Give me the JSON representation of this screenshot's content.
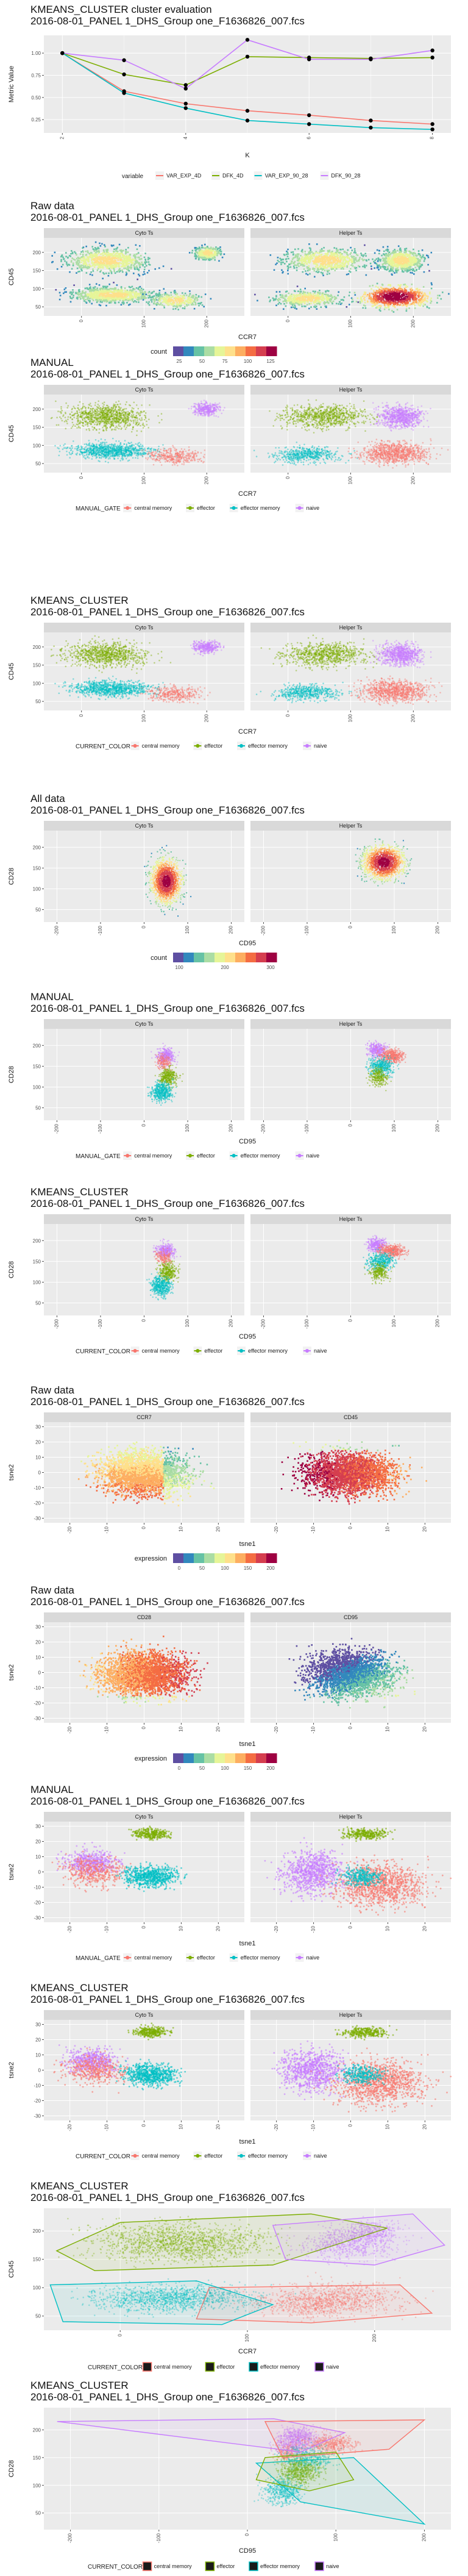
{
  "sample": "2016-08-01_PANEL 1_DHS_Group one_F1636826_007.fcs",
  "chart_data": [
    {
      "id": "eval",
      "type": "line",
      "title": "KMEANS_CLUSTER cluster evaluation",
      "subtitle": "2016-08-01_PANEL 1_DHS_Group one_F1636826_007.fcs",
      "xlabel": "K",
      "ylabel": "Metric Value",
      "x": [
        2,
        3,
        4,
        5,
        6,
        7,
        8
      ],
      "xticks": [
        "2",
        "4",
        "6",
        "8"
      ],
      "yticks": [
        "0.25",
        "0.50",
        "0.75",
        "1.00"
      ],
      "ylim": [
        0.1,
        1.2
      ],
      "legend_title": "variable",
      "series": [
        {
          "name": "VAR_EXP_4D",
          "color": "#F8766D",
          "values": [
            1.0,
            0.57,
            0.43,
            0.35,
            0.3,
            0.24,
            0.2
          ]
        },
        {
          "name": "DFK_4D",
          "color": "#7CAE00",
          "values": [
            1.0,
            0.76,
            0.64,
            0.96,
            0.95,
            0.94,
            0.95
          ]
        },
        {
          "name": "VAR_EXP_90_28",
          "color": "#00BFC4",
          "values": [
            1.0,
            0.55,
            0.38,
            0.24,
            0.2,
            0.16,
            0.14
          ]
        },
        {
          "name": "DFK_90_28",
          "color": "#C77CFF",
          "values": [
            1.0,
            0.92,
            0.6,
            1.15,
            0.93,
            0.93,
            1.03
          ]
        }
      ]
    },
    {
      "id": "raw-ccr7-cd45",
      "type": "heatmap",
      "title": "Raw data",
      "subtitle": "2016-08-01_PANEL 1_DHS_Group one_F1636826_007.fcs",
      "panels": [
        "Cyto Ts",
        "Helper Ts"
      ],
      "xlabel": "CCR7",
      "ylabel": "CD45",
      "xticks": [
        "0",
        "100",
        "200"
      ],
      "yticks": [
        "50",
        "100",
        "150",
        "200"
      ],
      "xlim": [
        -60,
        260
      ],
      "ylim": [
        25,
        240
      ],
      "legend_title": "count",
      "legend_ticks": [
        "25",
        "50",
        "75",
        "100",
        "125"
      ],
      "scale": [
        "#5E4FA2",
        "#3288BD",
        "#66C2A5",
        "#ABDDA4",
        "#E6F598",
        "#FEE08B",
        "#FDAE61",
        "#F46D43",
        "#D53E4F",
        "#9E0142"
      ]
    },
    {
      "id": "manual-ccr7-cd45",
      "type": "scatter",
      "title": "MANUAL",
      "subtitle": "2016-08-01_PANEL 1_DHS_Group one_F1636826_007.fcs",
      "panels": [
        "Cyto Ts",
        "Helper Ts"
      ],
      "xlabel": "CCR7",
      "ylabel": "CD45",
      "xticks": [
        "0",
        "100",
        "200"
      ],
      "yticks": [
        "50",
        "100",
        "150",
        "200"
      ],
      "xlim": [
        -60,
        260
      ],
      "ylim": [
        25,
        240
      ],
      "legend_title": "MANUAL_GATE",
      "categories": [
        "central memory",
        "effector",
        "effector memory",
        "naive"
      ]
    },
    {
      "id": "kmeans-ccr7-cd45",
      "type": "scatter",
      "title": "KMEANS_CLUSTER",
      "subtitle": "2016-08-01_PANEL 1_DHS_Group one_F1636826_007.fcs",
      "panels": [
        "Cyto Ts",
        "Helper Ts"
      ],
      "xlabel": "CCR7",
      "ylabel": "CD45",
      "xticks": [
        "0",
        "100",
        "200"
      ],
      "yticks": [
        "50",
        "100",
        "150",
        "200"
      ],
      "xlim": [
        -60,
        260
      ],
      "ylim": [
        25,
        240
      ],
      "legend_title": "CURRENT_COLOR",
      "categories": [
        "central memory",
        "effector",
        "effector memory",
        "naive"
      ]
    },
    {
      "id": "all-cd95-cd28",
      "type": "heatmap",
      "title": "All data",
      "subtitle": "2016-08-01_PANEL 1_DHS_Group one_F1636826_007.fcs",
      "panels": [
        "Cyto Ts",
        "Helper Ts"
      ],
      "xlabel": "CD95",
      "ylabel": "CD28",
      "xticks": [
        "-200",
        "-100",
        "0",
        "100",
        "200"
      ],
      "yticks": [
        "50",
        "100",
        "150",
        "200"
      ],
      "xlim": [
        -230,
        230
      ],
      "ylim": [
        20,
        240
      ],
      "legend_title": "count",
      "legend_ticks": [
        "100",
        "200",
        "300"
      ],
      "scale": [
        "#5E4FA2",
        "#3288BD",
        "#66C2A5",
        "#ABDDA4",
        "#E6F598",
        "#FEE08B",
        "#FDAE61",
        "#F46D43",
        "#D53E4F",
        "#9E0142"
      ]
    },
    {
      "id": "manual-cd95-cd28",
      "type": "scatter",
      "title": "MANUAL",
      "subtitle": "2016-08-01_PANEL 1_DHS_Group one_F1636826_007.fcs",
      "panels": [
        "Cyto Ts",
        "Helper Ts"
      ],
      "xlabel": "CD95",
      "ylabel": "CD28",
      "xticks": [
        "-200",
        "-100",
        "0",
        "100",
        "200"
      ],
      "yticks": [
        "50",
        "100",
        "150",
        "200"
      ],
      "xlim": [
        -230,
        230
      ],
      "ylim": [
        20,
        240
      ],
      "legend_title": "MANUAL_GATE",
      "categories": [
        "central memory",
        "effector",
        "effector memory",
        "naive"
      ]
    },
    {
      "id": "kmeans-cd95-cd28",
      "type": "scatter",
      "title": "KMEANS_CLUSTER",
      "subtitle": "2016-08-01_PANEL 1_DHS_Group one_F1636826_007.fcs",
      "panels": [
        "Cyto Ts",
        "Helper Ts"
      ],
      "xlabel": "CD95",
      "ylabel": "CD28",
      "xticks": [
        "-200",
        "-100",
        "0",
        "100",
        "200"
      ],
      "yticks": [
        "50",
        "100",
        "150",
        "200"
      ],
      "xlim": [
        -230,
        230
      ],
      "ylim": [
        20,
        240
      ],
      "legend_title": "CURRENT_COLOR",
      "categories": [
        "central memory",
        "effector",
        "effector memory",
        "naive"
      ]
    },
    {
      "id": "tsne-ccr7-cd45",
      "type": "heatmap",
      "title": "Raw data",
      "subtitle": "2016-08-01_PANEL 1_DHS_Group one_F1636826_007.fcs",
      "panels": [
        "CCR7",
        "CD45"
      ],
      "xlabel": "tsne1",
      "ylabel": "tsne2",
      "xticks": [
        "-20",
        "-10",
        "0",
        "10",
        "20"
      ],
      "yticks": [
        "-30",
        "-20",
        "-10",
        "0",
        "10",
        "20",
        "30"
      ],
      "xlim": [
        -27,
        27
      ],
      "ylim": [
        -33,
        33
      ],
      "legend_title": "expression",
      "legend_ticks": [
        "0",
        "50",
        "100",
        "150",
        "200"
      ],
      "scale": [
        "#5E4FA2",
        "#3288BD",
        "#66C2A5",
        "#ABDDA4",
        "#E6F598",
        "#FEE08B",
        "#FDAE61",
        "#F46D43",
        "#D53E4F",
        "#9E0142"
      ]
    },
    {
      "id": "tsne-cd28-cd95",
      "type": "heatmap",
      "title": "Raw data",
      "subtitle": "2016-08-01_PANEL 1_DHS_Group one_F1636826_007.fcs",
      "panels": [
        "CD28",
        "CD95"
      ],
      "xlabel": "tsne1",
      "ylabel": "tsne2",
      "xticks": [
        "-20",
        "-10",
        "0",
        "10",
        "20"
      ],
      "yticks": [
        "-30",
        "-20",
        "-10",
        "0",
        "10",
        "20",
        "30"
      ],
      "xlim": [
        -27,
        27
      ],
      "ylim": [
        -33,
        33
      ],
      "legend_title": "expression",
      "legend_ticks": [
        "0",
        "50",
        "100",
        "150",
        "200"
      ],
      "scale": [
        "#5E4FA2",
        "#3288BD",
        "#66C2A5",
        "#ABDDA4",
        "#E6F598",
        "#FEE08B",
        "#FDAE61",
        "#F46D43",
        "#D53E4F",
        "#9E0142"
      ]
    },
    {
      "id": "tsne-manual",
      "type": "scatter",
      "title": "MANUAL",
      "subtitle": "2016-08-01_PANEL 1_DHS_Group one_F1636826_007.fcs",
      "panels": [
        "Cyto Ts",
        "Helper Ts"
      ],
      "xlabel": "tsne1",
      "ylabel": "tsne2",
      "xticks": [
        "-20",
        "-10",
        "0",
        "10",
        "20"
      ],
      "yticks": [
        "-30",
        "-20",
        "-10",
        "0",
        "10",
        "20",
        "30"
      ],
      "xlim": [
        -27,
        27
      ],
      "ylim": [
        -33,
        33
      ],
      "legend_title": "MANUAL_GATE",
      "categories": [
        "central memory",
        "effector",
        "effector memory",
        "naive"
      ]
    },
    {
      "id": "tsne-kmeans",
      "type": "scatter",
      "title": "KMEANS_CLUSTER",
      "subtitle": "2016-08-01_PANEL 1_DHS_Group one_F1636826_007.fcs",
      "panels": [
        "Cyto Ts",
        "Helper Ts"
      ],
      "xlabel": "tsne1",
      "ylabel": "tsne2",
      "xticks": [
        "-20",
        "-10",
        "0",
        "10",
        "20"
      ],
      "yticks": [
        "-30",
        "-20",
        "-10",
        "0",
        "10",
        "20",
        "30"
      ],
      "xlim": [
        -27,
        27
      ],
      "ylim": [
        -33,
        33
      ],
      "legend_title": "CURRENT_COLOR",
      "categories": [
        "central memory",
        "effector",
        "effector memory",
        "naive"
      ]
    },
    {
      "id": "hull-ccr7-cd45",
      "type": "scatter",
      "title": "KMEANS_CLUSTER",
      "subtitle": "2016-08-01_PANEL 1_DHS_Group one_F1636826_007.fcs",
      "panels": [],
      "xlabel": "CCR7",
      "ylabel": "CD45",
      "xticks": [
        "0",
        "100",
        "200"
      ],
      "yticks": [
        "50",
        "100",
        "150",
        "200"
      ],
      "xlim": [
        -60,
        260
      ],
      "ylim": [
        25,
        240
      ],
      "legend_title": "CURRENT_COLOR",
      "categories": [
        "central memory",
        "effector",
        "effector memory",
        "naive"
      ]
    },
    {
      "id": "hull-cd95-cd28",
      "type": "scatter",
      "title": "KMEANS_CLUSTER",
      "subtitle": "2016-08-01_PANEL 1_DHS_Group one_F1636826_007.fcs",
      "panels": [],
      "xlabel": "CD95",
      "ylabel": "CD28",
      "xticks": [
        "-200",
        "-100",
        "0",
        "100",
        "200"
      ],
      "yticks": [
        "50",
        "100",
        "150",
        "200"
      ],
      "xlim": [
        -230,
        230
      ],
      "ylim": [
        20,
        240
      ],
      "legend_title": "CURRENT_COLOR",
      "categories": [
        "central memory",
        "effector",
        "effector memory",
        "naive"
      ]
    }
  ],
  "colors": {
    "central memory": "#F8766D",
    "effector": "#7CAE00",
    "effector memory": "#00BFC4",
    "naive": "#C77CFF",
    "panel_bg": "#EBEBEB",
    "strip_bg": "#D9D9D9",
    "grid": "#FFFFFF"
  }
}
